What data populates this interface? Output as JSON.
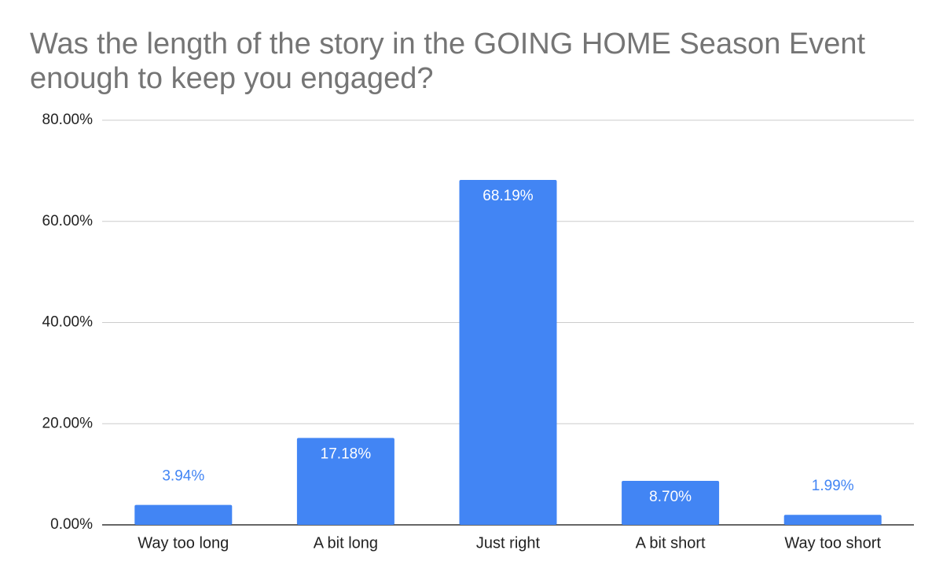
{
  "chart_data": {
    "type": "bar",
    "title": "Was the length of the story in the GOING HOME Season Event enough to keep you engaged?",
    "categories": [
      "Way too long",
      "A bit long",
      "Just right",
      "A bit short",
      "Way too short"
    ],
    "values": [
      3.94,
      17.18,
      68.19,
      8.7,
      1.99
    ],
    "value_labels": [
      "3.94%",
      "17.18%",
      "68.19%",
      "8.70%",
      "1.99%"
    ],
    "color": "#4285f4",
    "ylim": [
      0,
      80
    ],
    "yticks": [
      {
        "value": 0,
        "label": "0.00%"
      },
      {
        "value": 20,
        "label": "20.00%"
      },
      {
        "value": 40,
        "label": "40.00%"
      },
      {
        "value": 60,
        "label": "60.00%"
      },
      {
        "value": 80,
        "label": "80.00%"
      }
    ],
    "grid": true
  }
}
